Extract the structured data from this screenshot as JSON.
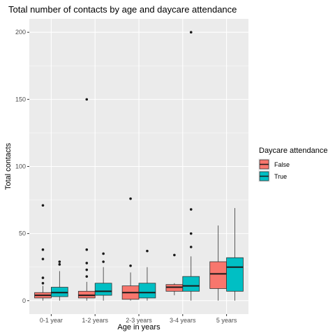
{
  "chart_data": {
    "type": "boxplot",
    "title": "Total number of contacts by age and daycare attendance",
    "xlabel": "Age in years",
    "ylabel": "Total contacts",
    "categories": [
      "0-1 year",
      "1-2 years",
      "2-3 years",
      "3-4 years",
      "5 years"
    ],
    "ylim": [
      -10,
      210
    ],
    "yticks": [
      0,
      50,
      100,
      150,
      200
    ],
    "grid": true,
    "legend": {
      "title": "Daycare attendance",
      "placement": "right"
    },
    "series": [
      {
        "name": "False",
        "color": "#F8766D",
        "boxes": [
          {
            "min": 0,
            "q1": 2,
            "median": 4,
            "q3": 6,
            "max": 11,
            "outliers": [
              13,
              17,
              31,
              38,
              71
            ]
          },
          {
            "min": 0,
            "q1": 2,
            "median": 4,
            "q3": 7,
            "max": 14,
            "outliers": [
              18,
              23,
              28,
              38,
              150
            ]
          },
          {
            "min": 0,
            "q1": 1,
            "median": 6,
            "q3": 11,
            "max": 21,
            "outliers": [
              26,
              76
            ]
          },
          {
            "min": 4,
            "q1": 7,
            "median": 10,
            "q3": 12,
            "max": 13,
            "outliers": [
              34
            ]
          },
          {
            "min": 0,
            "q1": 9,
            "median": 20,
            "q3": 29,
            "max": 56,
            "outliers": []
          }
        ]
      },
      {
        "name": "True",
        "color": "#00BFC4",
        "boxes": [
          {
            "min": 0,
            "q1": 3,
            "median": 6,
            "q3": 10,
            "max": 22,
            "outliers": [
              27,
              29
            ]
          },
          {
            "min": 0,
            "q1": 4,
            "median": 7,
            "q3": 13,
            "max": 25,
            "outliers": [
              29,
              35
            ]
          },
          {
            "min": 0,
            "q1": 2,
            "median": 6,
            "q3": 13,
            "max": 25,
            "outliers": [
              37
            ]
          },
          {
            "min": 0,
            "q1": 7,
            "median": 11,
            "q3": 18,
            "max": 33,
            "outliers": [
              40,
              50,
              68,
              200
            ]
          },
          {
            "min": 0,
            "q1": 7,
            "median": 25,
            "q3": 32,
            "max": 69,
            "outliers": []
          }
        ]
      }
    ]
  }
}
